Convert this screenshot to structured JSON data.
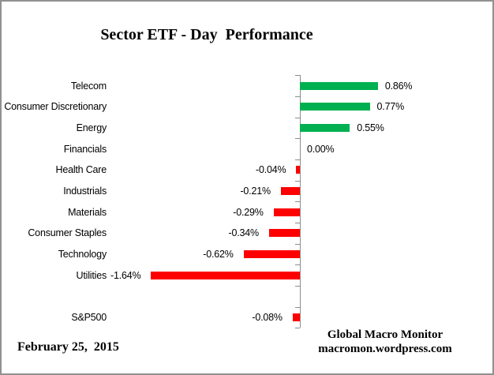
{
  "title": "Sector ETF - Day  Performance",
  "footer": {
    "date": "February 25,  2015",
    "source_line1": "Global Macro Monitor",
    "source_line2": "macromon.wordpress.com"
  },
  "colors": {
    "positive_bar": "#00B050",
    "negative_bar": "#FF0000",
    "axis": "#8C8C8C",
    "border": "#919191",
    "text": "#000000"
  },
  "chart_data": {
    "type": "bar",
    "orientation": "horizontal",
    "title": "Sector ETF - Day  Performance",
    "xlabel": "",
    "ylabel": "",
    "grid": false,
    "legend": false,
    "value_unit": "percent",
    "categories": [
      "Telecom",
      "Consumer Discretionary",
      "Energy",
      "Financials",
      "Health Care",
      "Industrials",
      "Materials",
      "Consumer Staples",
      "Technology",
      "Utilities",
      "S&P500"
    ],
    "values": [
      0.86,
      0.77,
      0.55,
      0.0,
      -0.04,
      -0.21,
      -0.29,
      -0.34,
      -0.62,
      -1.64,
      -0.08
    ],
    "value_labels": [
      "0.86%",
      "0.77%",
      "0.55%",
      "0.00%",
      "-0.04%",
      "-0.21%",
      "-0.29%",
      "-0.34%",
      "-0.62%",
      "-1.64%",
      "-0.08%"
    ],
    "notes": "S&P500 row is separated from the ten sector rows by one blank row"
  }
}
